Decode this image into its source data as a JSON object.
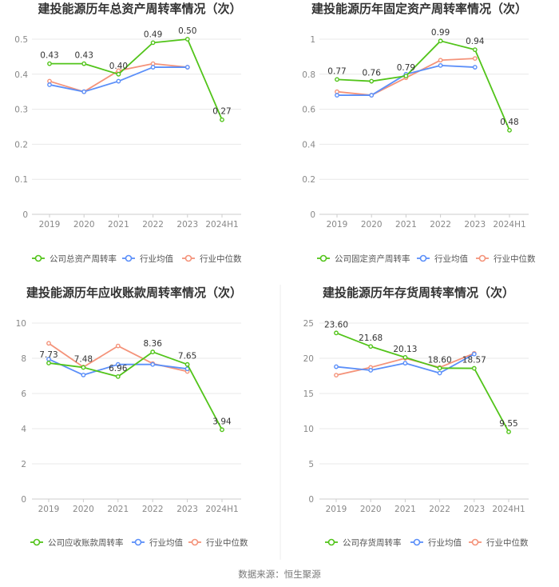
{
  "source": "数据来源：恒生聚源",
  "colors": {
    "company": "#52c41a",
    "avg": "#5b8ff9",
    "median": "#f4937a",
    "grid": "#e8e8e8",
    "axis": "#cccccc"
  },
  "legend_labels": {
    "avg": "行业均值",
    "median": "行业中位数"
  },
  "chart_data": [
    {
      "type": "line",
      "title": "建投能源历年总资产周转率情况（次）",
      "categories": [
        "2019",
        "2020",
        "2021",
        "2022",
        "2023",
        "2024H1"
      ],
      "ylim": [
        0,
        0.5
      ],
      "yticks": [
        0,
        0.1,
        0.2,
        0.3,
        0.4,
        0.5
      ],
      "ytick_labels": [
        "0",
        "0.1",
        "0.2",
        "0.3",
        "0.4",
        "0.5"
      ],
      "series": [
        {
          "key": "company",
          "name": "公司总资产周转率",
          "values": [
            0.43,
            0.43,
            0.4,
            0.49,
            0.5,
            0.27
          ],
          "labels": [
            "0.43",
            "0.43",
            "0.40",
            "0.49",
            "0.50",
            "0.27"
          ]
        },
        {
          "key": "avg",
          "name": "行业均值",
          "values": [
            0.37,
            0.35,
            0.38,
            0.42,
            0.42,
            null
          ]
        },
        {
          "key": "median",
          "name": "行业中位数",
          "values": [
            0.38,
            0.35,
            0.41,
            0.43,
            0.42,
            null
          ]
        }
      ]
    },
    {
      "type": "line",
      "title": "建投能源历年固定资产周转率情况（次）",
      "categories": [
        "2019",
        "2020",
        "2021",
        "2022",
        "2023",
        "2024H1"
      ],
      "ylim": [
        0,
        1
      ],
      "yticks": [
        0,
        0.2,
        0.4,
        0.6,
        0.8,
        1
      ],
      "ytick_labels": [
        "0",
        "0.2",
        "0.4",
        "0.6",
        "0.8",
        "1"
      ],
      "series": [
        {
          "key": "company",
          "name": "公司固定资产周转率",
          "values": [
            0.77,
            0.76,
            0.79,
            0.99,
            0.94,
            0.48
          ],
          "labels": [
            "0.77",
            "0.76",
            "0.79",
            "0.99",
            "0.94",
            "0.48"
          ]
        },
        {
          "key": "avg",
          "name": "行业均值",
          "values": [
            0.68,
            0.68,
            0.8,
            0.85,
            0.84,
            null
          ]
        },
        {
          "key": "median",
          "name": "行业中位数",
          "values": [
            0.7,
            0.68,
            0.78,
            0.88,
            0.89,
            null
          ]
        }
      ]
    },
    {
      "type": "line",
      "title": "建投能源历年应收账款周转率情况（次）",
      "categories": [
        "2019",
        "2020",
        "2021",
        "2022",
        "2023",
        "2024H1"
      ],
      "ylim": [
        0,
        10
      ],
      "yticks": [
        0,
        2,
        4,
        6,
        8,
        10
      ],
      "ytick_labels": [
        "0",
        "2",
        "4",
        "6",
        "8",
        "10"
      ],
      "series": [
        {
          "key": "company",
          "name": "公司应收账款周转率",
          "values": [
            7.73,
            7.48,
            6.96,
            8.36,
            7.65,
            3.94
          ],
          "labels": [
            "7.73",
            "7.48",
            "6.96",
            "8.36",
            "7.65",
            "3.94"
          ]
        },
        {
          "key": "avg",
          "name": "行业均值",
          "values": [
            7.95,
            7.05,
            7.65,
            7.65,
            7.4,
            null
          ]
        },
        {
          "key": "median",
          "name": "行业中位数",
          "values": [
            8.85,
            7.5,
            8.7,
            7.7,
            7.25,
            null
          ]
        }
      ]
    },
    {
      "type": "line",
      "title": "建投能源历年存货周转率情况（次）",
      "categories": [
        "2019",
        "2020",
        "2021",
        "2022",
        "2023",
        "2024H1"
      ],
      "ylim": [
        0,
        25
      ],
      "yticks": [
        0,
        5,
        10,
        15,
        20,
        25
      ],
      "ytick_labels": [
        "0",
        "5",
        "10",
        "15",
        "20",
        "25"
      ],
      "series": [
        {
          "key": "company",
          "name": "公司存货周转率",
          "values": [
            23.6,
            21.68,
            20.13,
            18.6,
            18.57,
            9.55
          ],
          "labels": [
            "23.60",
            "21.68",
            "20.13",
            "18.60",
            "18.57",
            "9.55"
          ]
        },
        {
          "key": "avg",
          "name": "行业均值",
          "values": [
            18.8,
            18.3,
            19.3,
            17.9,
            20.6,
            null
          ]
        },
        {
          "key": "median",
          "name": "行业中位数",
          "values": [
            17.6,
            18.7,
            20.0,
            18.7,
            20.7,
            null
          ]
        }
      ]
    }
  ]
}
